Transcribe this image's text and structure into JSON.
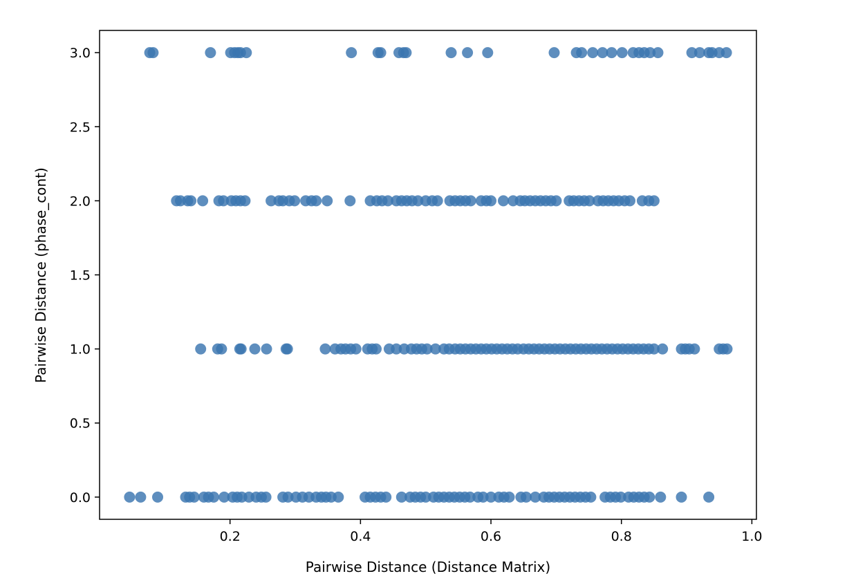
{
  "chart_data": {
    "type": "scatter",
    "title": "",
    "xlabel": "Pairwise Distance (Distance Matrix)",
    "ylabel": "Pairwise Distance (phase_cont)",
    "xlim": [
      0.0,
      1.007
    ],
    "ylim": [
      -0.15,
      3.15
    ],
    "x_ticks": [
      0.2,
      0.4,
      0.6,
      0.8,
      1.0
    ],
    "x_tick_labels": [
      "0.2",
      "0.4",
      "0.6",
      "0.8",
      "1.0"
    ],
    "y_ticks": [
      0.0,
      0.5,
      1.0,
      1.5,
      2.0,
      2.5,
      3.0
    ],
    "y_tick_labels": [
      "0.0",
      "0.5",
      "1.0",
      "1.5",
      "2.0",
      "2.5",
      "3.0"
    ],
    "grid": false,
    "marker_color": "#3a75b0",
    "series": [
      {
        "name": "",
        "points": [
          {
            "x": 0.077,
            "y": 3
          },
          {
            "x": 0.082,
            "y": 3
          },
          {
            "x": 0.17,
            "y": 3
          },
          {
            "x": 0.201,
            "y": 3
          },
          {
            "x": 0.207,
            "y": 3
          },
          {
            "x": 0.212,
            "y": 3
          },
          {
            "x": 0.216,
            "y": 3
          },
          {
            "x": 0.225,
            "y": 3
          },
          {
            "x": 0.386,
            "y": 3
          },
          {
            "x": 0.427,
            "y": 3
          },
          {
            "x": 0.431,
            "y": 3
          },
          {
            "x": 0.459,
            "y": 3
          },
          {
            "x": 0.466,
            "y": 3
          },
          {
            "x": 0.47,
            "y": 3
          },
          {
            "x": 0.539,
            "y": 3
          },
          {
            "x": 0.564,
            "y": 3
          },
          {
            "x": 0.595,
            "y": 3
          },
          {
            "x": 0.697,
            "y": 3
          },
          {
            "x": 0.731,
            "y": 3
          },
          {
            "x": 0.739,
            "y": 3
          },
          {
            "x": 0.756,
            "y": 3
          },
          {
            "x": 0.771,
            "y": 3
          },
          {
            "x": 0.785,
            "y": 3
          },
          {
            "x": 0.801,
            "y": 3
          },
          {
            "x": 0.818,
            "y": 3
          },
          {
            "x": 0.827,
            "y": 3
          },
          {
            "x": 0.835,
            "y": 3
          },
          {
            "x": 0.844,
            "y": 3
          },
          {
            "x": 0.856,
            "y": 3
          },
          {
            "x": 0.908,
            "y": 3
          },
          {
            "x": 0.92,
            "y": 3
          },
          {
            "x": 0.934,
            "y": 3
          },
          {
            "x": 0.939,
            "y": 3
          },
          {
            "x": 0.95,
            "y": 3
          },
          {
            "x": 0.961,
            "y": 3
          },
          {
            "x": 0.118,
            "y": 2
          },
          {
            "x": 0.124,
            "y": 2
          },
          {
            "x": 0.135,
            "y": 2
          },
          {
            "x": 0.14,
            "y": 2
          },
          {
            "x": 0.158,
            "y": 2
          },
          {
            "x": 0.183,
            "y": 2
          },
          {
            "x": 0.19,
            "y": 2
          },
          {
            "x": 0.202,
            "y": 2
          },
          {
            "x": 0.209,
            "y": 2
          },
          {
            "x": 0.216,
            "y": 2
          },
          {
            "x": 0.223,
            "y": 2
          },
          {
            "x": 0.263,
            "y": 2
          },
          {
            "x": 0.275,
            "y": 2
          },
          {
            "x": 0.281,
            "y": 2
          },
          {
            "x": 0.291,
            "y": 2
          },
          {
            "x": 0.299,
            "y": 2
          },
          {
            "x": 0.316,
            "y": 2
          },
          {
            "x": 0.325,
            "y": 2
          },
          {
            "x": 0.332,
            "y": 2
          },
          {
            "x": 0.349,
            "y": 2
          },
          {
            "x": 0.384,
            "y": 2
          },
          {
            "x": 0.415,
            "y": 2
          },
          {
            "x": 0.425,
            "y": 2
          },
          {
            "x": 0.433,
            "y": 2
          },
          {
            "x": 0.442,
            "y": 2
          },
          {
            "x": 0.455,
            "y": 2
          },
          {
            "x": 0.463,
            "y": 2
          },
          {
            "x": 0.471,
            "y": 2
          },
          {
            "x": 0.479,
            "y": 2
          },
          {
            "x": 0.488,
            "y": 2
          },
          {
            "x": 0.5,
            "y": 2
          },
          {
            "x": 0.51,
            "y": 2
          },
          {
            "x": 0.518,
            "y": 2
          },
          {
            "x": 0.537,
            "y": 2
          },
          {
            "x": 0.545,
            "y": 2
          },
          {
            "x": 0.553,
            "y": 2
          },
          {
            "x": 0.561,
            "y": 2
          },
          {
            "x": 0.569,
            "y": 2
          },
          {
            "x": 0.585,
            "y": 2
          },
          {
            "x": 0.593,
            "y": 2
          },
          {
            "x": 0.6,
            "y": 2
          },
          {
            "x": 0.619,
            "y": 2
          },
          {
            "x": 0.634,
            "y": 2
          },
          {
            "x": 0.645,
            "y": 2
          },
          {
            "x": 0.652,
            "y": 2
          },
          {
            "x": 0.66,
            "y": 2
          },
          {
            "x": 0.668,
            "y": 2
          },
          {
            "x": 0.676,
            "y": 2
          },
          {
            "x": 0.684,
            "y": 2
          },
          {
            "x": 0.692,
            "y": 2
          },
          {
            "x": 0.7,
            "y": 2
          },
          {
            "x": 0.72,
            "y": 2
          },
          {
            "x": 0.727,
            "y": 2
          },
          {
            "x": 0.735,
            "y": 2
          },
          {
            "x": 0.743,
            "y": 2
          },
          {
            "x": 0.751,
            "y": 2
          },
          {
            "x": 0.764,
            "y": 2
          },
          {
            "x": 0.772,
            "y": 2
          },
          {
            "x": 0.78,
            "y": 2
          },
          {
            "x": 0.788,
            "y": 2
          },
          {
            "x": 0.796,
            "y": 2
          },
          {
            "x": 0.805,
            "y": 2
          },
          {
            "x": 0.813,
            "y": 2
          },
          {
            "x": 0.832,
            "y": 2
          },
          {
            "x": 0.842,
            "y": 2
          },
          {
            "x": 0.85,
            "y": 2
          },
          {
            "x": 0.155,
            "y": 1
          },
          {
            "x": 0.181,
            "y": 1
          },
          {
            "x": 0.187,
            "y": 1
          },
          {
            "x": 0.215,
            "y": 1
          },
          {
            "x": 0.217,
            "y": 1
          },
          {
            "x": 0.238,
            "y": 1
          },
          {
            "x": 0.256,
            "y": 1
          },
          {
            "x": 0.286,
            "y": 1
          },
          {
            "x": 0.288,
            "y": 1
          },
          {
            "x": 0.346,
            "y": 1
          },
          {
            "x": 0.361,
            "y": 1
          },
          {
            "x": 0.37,
            "y": 1
          },
          {
            "x": 0.377,
            "y": 1
          },
          {
            "x": 0.385,
            "y": 1
          },
          {
            "x": 0.393,
            "y": 1
          },
          {
            "x": 0.411,
            "y": 1
          },
          {
            "x": 0.418,
            "y": 1
          },
          {
            "x": 0.424,
            "y": 1
          },
          {
            "x": 0.444,
            "y": 1
          },
          {
            "x": 0.455,
            "y": 1
          },
          {
            "x": 0.467,
            "y": 1
          },
          {
            "x": 0.478,
            "y": 1
          },
          {
            "x": 0.486,
            "y": 1
          },
          {
            "x": 0.494,
            "y": 1
          },
          {
            "x": 0.502,
            "y": 1
          },
          {
            "x": 0.515,
            "y": 1
          },
          {
            "x": 0.528,
            "y": 1
          },
          {
            "x": 0.536,
            "y": 1
          },
          {
            "x": 0.545,
            "y": 1
          },
          {
            "x": 0.553,
            "y": 1
          },
          {
            "x": 0.561,
            "y": 1
          },
          {
            "x": 0.569,
            "y": 1
          },
          {
            "x": 0.577,
            "y": 1
          },
          {
            "x": 0.585,
            "y": 1
          },
          {
            "x": 0.593,
            "y": 1
          },
          {
            "x": 0.601,
            "y": 1
          },
          {
            "x": 0.609,
            "y": 1
          },
          {
            "x": 0.617,
            "y": 1
          },
          {
            "x": 0.625,
            "y": 1
          },
          {
            "x": 0.633,
            "y": 1
          },
          {
            "x": 0.641,
            "y": 1
          },
          {
            "x": 0.65,
            "y": 1
          },
          {
            "x": 0.658,
            "y": 1
          },
          {
            "x": 0.666,
            "y": 1
          },
          {
            "x": 0.674,
            "y": 1
          },
          {
            "x": 0.682,
            "y": 1
          },
          {
            "x": 0.69,
            "y": 1
          },
          {
            "x": 0.698,
            "y": 1
          },
          {
            "x": 0.706,
            "y": 1
          },
          {
            "x": 0.714,
            "y": 1
          },
          {
            "x": 0.722,
            "y": 1
          },
          {
            "x": 0.73,
            "y": 1
          },
          {
            "x": 0.738,
            "y": 1
          },
          {
            "x": 0.746,
            "y": 1
          },
          {
            "x": 0.754,
            "y": 1
          },
          {
            "x": 0.762,
            "y": 1
          },
          {
            "x": 0.77,
            "y": 1
          },
          {
            "x": 0.778,
            "y": 1
          },
          {
            "x": 0.786,
            "y": 1
          },
          {
            "x": 0.794,
            "y": 1
          },
          {
            "x": 0.802,
            "y": 1
          },
          {
            "x": 0.81,
            "y": 1
          },
          {
            "x": 0.818,
            "y": 1
          },
          {
            "x": 0.826,
            "y": 1
          },
          {
            "x": 0.834,
            "y": 1
          },
          {
            "x": 0.842,
            "y": 1
          },
          {
            "x": 0.85,
            "y": 1
          },
          {
            "x": 0.863,
            "y": 1
          },
          {
            "x": 0.892,
            "y": 1
          },
          {
            "x": 0.898,
            "y": 1
          },
          {
            "x": 0.904,
            "y": 1
          },
          {
            "x": 0.912,
            "y": 1
          },
          {
            "x": 0.95,
            "y": 1
          },
          {
            "x": 0.956,
            "y": 1
          },
          {
            "x": 0.962,
            "y": 1
          },
          {
            "x": 0.046,
            "y": 0
          },
          {
            "x": 0.063,
            "y": 0
          },
          {
            "x": 0.089,
            "y": 0
          },
          {
            "x": 0.132,
            "y": 0
          },
          {
            "x": 0.138,
            "y": 0
          },
          {
            "x": 0.145,
            "y": 0
          },
          {
            "x": 0.16,
            "y": 0
          },
          {
            "x": 0.167,
            "y": 0
          },
          {
            "x": 0.175,
            "y": 0
          },
          {
            "x": 0.191,
            "y": 0
          },
          {
            "x": 0.204,
            "y": 0
          },
          {
            "x": 0.211,
            "y": 0
          },
          {
            "x": 0.218,
            "y": 0
          },
          {
            "x": 0.229,
            "y": 0
          },
          {
            "x": 0.24,
            "y": 0
          },
          {
            "x": 0.248,
            "y": 0
          },
          {
            "x": 0.255,
            "y": 0
          },
          {
            "x": 0.281,
            "y": 0
          },
          {
            "x": 0.289,
            "y": 0
          },
          {
            "x": 0.301,
            "y": 0
          },
          {
            "x": 0.311,
            "y": 0
          },
          {
            "x": 0.321,
            "y": 0
          },
          {
            "x": 0.332,
            "y": 0
          },
          {
            "x": 0.34,
            "y": 0
          },
          {
            "x": 0.347,
            "y": 0
          },
          {
            "x": 0.355,
            "y": 0
          },
          {
            "x": 0.366,
            "y": 0
          },
          {
            "x": 0.407,
            "y": 0
          },
          {
            "x": 0.415,
            "y": 0
          },
          {
            "x": 0.423,
            "y": 0
          },
          {
            "x": 0.431,
            "y": 0
          },
          {
            "x": 0.439,
            "y": 0
          },
          {
            "x": 0.463,
            "y": 0
          },
          {
            "x": 0.476,
            "y": 0
          },
          {
            "x": 0.484,
            "y": 0
          },
          {
            "x": 0.492,
            "y": 0
          },
          {
            "x": 0.5,
            "y": 0
          },
          {
            "x": 0.512,
            "y": 0
          },
          {
            "x": 0.52,
            "y": 0
          },
          {
            "x": 0.528,
            "y": 0
          },
          {
            "x": 0.536,
            "y": 0
          },
          {
            "x": 0.544,
            "y": 0
          },
          {
            "x": 0.552,
            "y": 0
          },
          {
            "x": 0.56,
            "y": 0
          },
          {
            "x": 0.568,
            "y": 0
          },
          {
            "x": 0.58,
            "y": 0
          },
          {
            "x": 0.588,
            "y": 0
          },
          {
            "x": 0.6,
            "y": 0
          },
          {
            "x": 0.612,
            "y": 0
          },
          {
            "x": 0.62,
            "y": 0
          },
          {
            "x": 0.628,
            "y": 0
          },
          {
            "x": 0.646,
            "y": 0
          },
          {
            "x": 0.654,
            "y": 0
          },
          {
            "x": 0.668,
            "y": 0
          },
          {
            "x": 0.681,
            "y": 0
          },
          {
            "x": 0.689,
            "y": 0
          },
          {
            "x": 0.697,
            "y": 0
          },
          {
            "x": 0.705,
            "y": 0
          },
          {
            "x": 0.713,
            "y": 0
          },
          {
            "x": 0.721,
            "y": 0
          },
          {
            "x": 0.729,
            "y": 0
          },
          {
            "x": 0.737,
            "y": 0
          },
          {
            "x": 0.745,
            "y": 0
          },
          {
            "x": 0.753,
            "y": 0
          },
          {
            "x": 0.775,
            "y": 0
          },
          {
            "x": 0.783,
            "y": 0
          },
          {
            "x": 0.791,
            "y": 0
          },
          {
            "x": 0.799,
            "y": 0
          },
          {
            "x": 0.811,
            "y": 0
          },
          {
            "x": 0.819,
            "y": 0
          },
          {
            "x": 0.827,
            "y": 0
          },
          {
            "x": 0.835,
            "y": 0
          },
          {
            "x": 0.843,
            "y": 0
          },
          {
            "x": 0.86,
            "y": 0
          },
          {
            "x": 0.892,
            "y": 0
          },
          {
            "x": 0.934,
            "y": 0
          }
        ]
      }
    ]
  }
}
